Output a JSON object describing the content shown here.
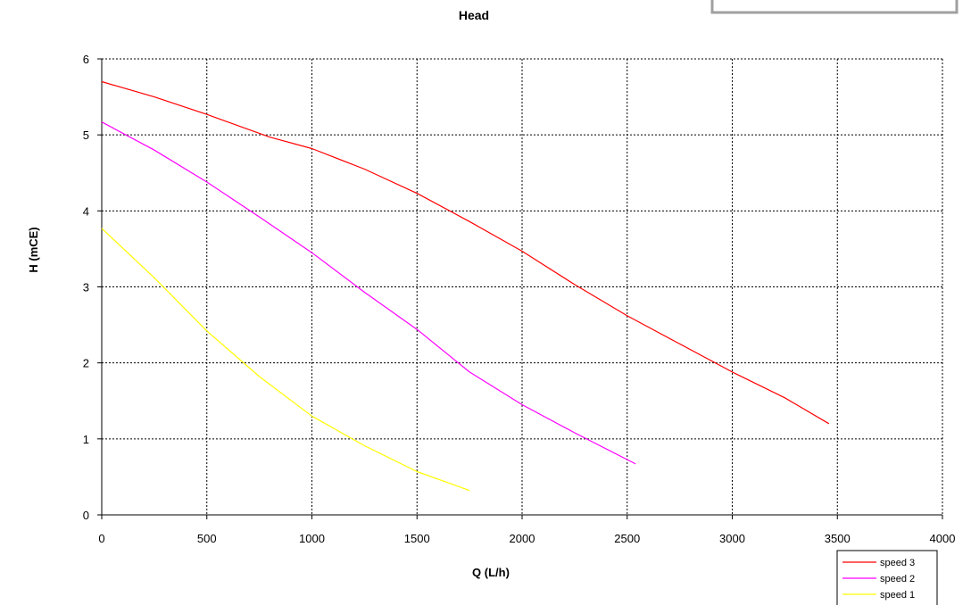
{
  "chart_data": {
    "type": "line",
    "title": "Head",
    "xlabel": "Q (L/h)",
    "ylabel": "H (mCE)",
    "xlim": [
      0,
      4000
    ],
    "ylim": [
      0,
      6
    ],
    "xticks": [
      0,
      500,
      1000,
      1500,
      2000,
      2500,
      3000,
      3500,
      4000
    ],
    "yticks": [
      0,
      1,
      2,
      3,
      4,
      5,
      6
    ],
    "grid": true,
    "legend_position": "bottom-right",
    "series": [
      {
        "name": "speed 3",
        "color": "#ff0000",
        "points": [
          [
            0,
            5.7
          ],
          [
            250,
            5.5
          ],
          [
            500,
            5.27
          ],
          [
            800,
            4.97
          ],
          [
            1000,
            4.82
          ],
          [
            1250,
            4.55
          ],
          [
            1500,
            4.23
          ],
          [
            1750,
            3.86
          ],
          [
            2000,
            3.47
          ],
          [
            2250,
            3.03
          ],
          [
            2500,
            2.62
          ],
          [
            2750,
            2.25
          ],
          [
            3000,
            1.88
          ],
          [
            3250,
            1.54
          ],
          [
            3460,
            1.2
          ]
        ]
      },
      {
        "name": "speed 2",
        "color": "#ff00ff",
        "points": [
          [
            0,
            5.17
          ],
          [
            250,
            4.8
          ],
          [
            500,
            4.38
          ],
          [
            750,
            3.92
          ],
          [
            1000,
            3.45
          ],
          [
            1250,
            2.93
          ],
          [
            1500,
            2.44
          ],
          [
            1750,
            1.88
          ],
          [
            2000,
            1.45
          ],
          [
            2250,
            1.08
          ],
          [
            2540,
            0.67
          ]
        ]
      },
      {
        "name": "speed 1",
        "color": "#ffff00",
        "points": [
          [
            0,
            3.77
          ],
          [
            250,
            3.12
          ],
          [
            500,
            2.42
          ],
          [
            750,
            1.82
          ],
          [
            1000,
            1.3
          ],
          [
            1250,
            0.91
          ],
          [
            1500,
            0.57
          ],
          [
            1750,
            0.32
          ]
        ]
      }
    ]
  }
}
